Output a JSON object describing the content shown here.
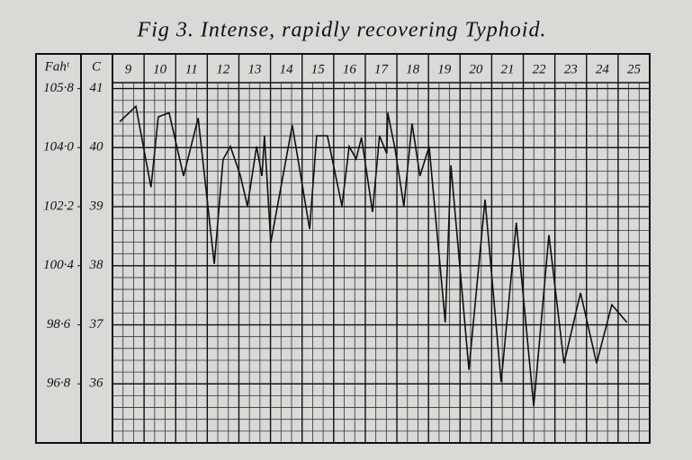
{
  "chart_data": {
    "type": "line",
    "title": "Fig 3.  Intense, rapidly recovering Typhoid.",
    "y_axis_label": "C",
    "y2_axis_label": "Fahᵗ",
    "xlim": [
      9,
      26
    ],
    "xticks": [
      9,
      10,
      11,
      12,
      13,
      14,
      15,
      16,
      17,
      18,
      19,
      20,
      21,
      22,
      23,
      24,
      25
    ],
    "ylim": [
      35,
      41.1
    ],
    "yticks": [
      36,
      37,
      38,
      39,
      40,
      41
    ],
    "y2lim": [
      95,
      105.98
    ],
    "y2ticks": [
      {
        "value": 96.8,
        "label": "96·8"
      },
      {
        "value": 98.6,
        "label": "98·6"
      },
      {
        "value": 100.4,
        "label": "100·4"
      },
      {
        "value": 102.2,
        "label": "102·2"
      },
      {
        "value": 104.0,
        "label": "104·0"
      },
      {
        "value": 105.8,
        "label": "105·8"
      }
    ],
    "grid": true,
    "color": "#111",
    "x": [
      9.23,
      9.74,
      10.22,
      10.45,
      10.79,
      11.25,
      11.71,
      12.22,
      12.5,
      12.73,
      13.04,
      13.27,
      13.56,
      13.73,
      13.81,
      14.01,
      14.69,
      15.24,
      15.46,
      15.8,
      16.26,
      16.49,
      16.71,
      16.88,
      17.23,
      17.45,
      17.68,
      17.71,
      17.94,
      18.22,
      18.48,
      18.73,
      19.02,
      19.53,
      19.71,
      20.28,
      20.79,
      21.3,
      21.78,
      22.33,
      22.81,
      23.29,
      23.81,
      24.32,
      24.8,
      25.28
    ],
    "values": [
      40.44,
      40.7,
      39.33,
      40.52,
      40.59,
      39.52,
      40.5,
      38.03,
      39.8,
      40.02,
      39.54,
      39.01,
      40.02,
      39.52,
      40.2,
      38.39,
      40.38,
      38.62,
      40.2,
      40.2,
      39.01,
      40.02,
      39.81,
      40.17,
      38.91,
      40.2,
      39.9,
      40.59,
      39.98,
      39.01,
      40.41,
      39.52,
      40.02,
      37.04,
      39.7,
      36.24,
      39.12,
      36.03,
      38.73,
      35.62,
      38.52,
      36.35,
      37.54,
      36.35,
      37.34,
      37.04
    ]
  }
}
